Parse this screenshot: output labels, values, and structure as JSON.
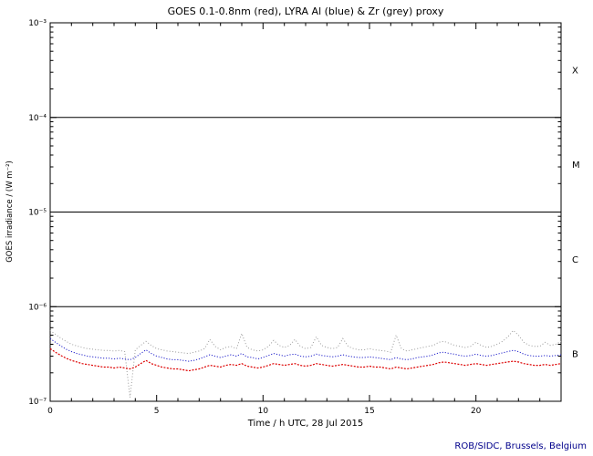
{
  "window": {
    "kind": "solar x-ray flux monitor plot"
  },
  "footer": {
    "credit": "ROB/SIDC, Brussels, Belgium"
  },
  "chart_data": {
    "type": "line",
    "title": "GOES 0.1-0.8nm (red), LYRA Al (blue) & Zr (grey) proxy",
    "xlabel": "Time / h UTC, 28 Jul 2015",
    "ylabel": "GOES irradiance / (W m⁻²)",
    "x_range": [
      0,
      24
    ],
    "y_scale": "log",
    "y_range": [
      1e-07,
      0.001
    ],
    "x_ticks_major": [
      0,
      5,
      10,
      15,
      20
    ],
    "x_tick_labels": [
      "0",
      "5",
      "10",
      "15",
      "20"
    ],
    "x_minor_step": 1,
    "y_ticks_major": [
      0.001,
      0.0001,
      1e-05,
      1e-06,
      1e-07
    ],
    "y_tick_labels": [
      "10⁻³",
      "10⁻⁴",
      "10⁻⁵",
      "10⁻⁶",
      "10⁻⁷"
    ],
    "hlines": [
      0.0001,
      1e-05,
      1e-06
    ],
    "class_labels": [
      {
        "label": "X",
        "value": 0.000316
      },
      {
        "label": "M",
        "value": 3.16e-05
      },
      {
        "label": "C",
        "value": 3.16e-06
      },
      {
        "label": "B",
        "value": 3.16e-07
      }
    ],
    "grid": false,
    "legend_position": "in-title",
    "x_start": 0,
    "x_step": 0.25,
    "unit_scale": 1e-07,
    "series": [
      {
        "name": "GOES 0.1-0.8nm",
        "color": "#dd0000",
        "values": [
          3.6,
          3.3,
          3.05,
          2.85,
          2.7,
          2.6,
          2.5,
          2.45,
          2.4,
          2.35,
          2.3,
          2.3,
          2.25,
          2.3,
          2.25,
          2.2,
          2.3,
          2.5,
          2.7,
          2.5,
          2.4,
          2.3,
          2.25,
          2.2,
          2.2,
          2.15,
          2.1,
          2.15,
          2.2,
          2.3,
          2.4,
          2.35,
          2.3,
          2.4,
          2.45,
          2.4,
          2.5,
          2.35,
          2.3,
          2.25,
          2.3,
          2.4,
          2.5,
          2.45,
          2.4,
          2.45,
          2.5,
          2.4,
          2.35,
          2.4,
          2.5,
          2.45,
          2.4,
          2.35,
          2.4,
          2.45,
          2.4,
          2.35,
          2.3,
          2.3,
          2.35,
          2.3,
          2.3,
          2.25,
          2.2,
          2.3,
          2.25,
          2.2,
          2.25,
          2.3,
          2.35,
          2.4,
          2.45,
          2.55,
          2.6,
          2.55,
          2.5,
          2.45,
          2.4,
          2.45,
          2.5,
          2.45,
          2.4,
          2.45,
          2.5,
          2.55,
          2.6,
          2.65,
          2.6,
          2.5,
          2.45,
          2.4,
          2.4,
          2.45,
          2.4,
          2.45,
          2.5
        ]
      },
      {
        "name": "LYRA Al proxy",
        "color": "#2222cc",
        "values": [
          4.6,
          4.2,
          3.85,
          3.55,
          3.35,
          3.2,
          3.1,
          3.0,
          2.95,
          2.9,
          2.85,
          2.85,
          2.8,
          2.85,
          2.8,
          2.75,
          2.9,
          3.2,
          3.5,
          3.2,
          3.0,
          2.9,
          2.8,
          2.75,
          2.75,
          2.7,
          2.65,
          2.7,
          2.8,
          2.95,
          3.1,
          3.0,
          2.9,
          3.0,
          3.1,
          3.0,
          3.2,
          2.95,
          2.9,
          2.8,
          2.9,
          3.05,
          3.2,
          3.1,
          3.0,
          3.1,
          3.15,
          3.0,
          2.95,
          3.0,
          3.15,
          3.05,
          3.0,
          2.95,
          3.0,
          3.1,
          3.0,
          2.95,
          2.9,
          2.9,
          2.95,
          2.9,
          2.85,
          2.8,
          2.75,
          2.9,
          2.8,
          2.75,
          2.8,
          2.9,
          2.95,
          3.0,
          3.1,
          3.25,
          3.3,
          3.2,
          3.15,
          3.05,
          3.0,
          3.05,
          3.15,
          3.05,
          3.0,
          3.05,
          3.15,
          3.25,
          3.35,
          3.45,
          3.35,
          3.15,
          3.05,
          3.0,
          3.0,
          3.05,
          3.0,
          3.05,
          3.1
        ]
      },
      {
        "name": "LYRA Zr proxy",
        "color": "#999999",
        "values": [
          5.6,
          5.1,
          4.65,
          4.3,
          4.0,
          3.85,
          3.7,
          3.6,
          3.55,
          3.5,
          3.45,
          3.45,
          3.4,
          3.45,
          3.35,
          1.1,
          3.5,
          3.9,
          4.3,
          3.9,
          3.6,
          3.5,
          3.4,
          3.35,
          3.3,
          3.25,
          3.2,
          3.3,
          3.4,
          3.6,
          4.5,
          3.8,
          3.5,
          3.7,
          3.8,
          3.6,
          5.2,
          3.7,
          3.5,
          3.4,
          3.5,
          3.8,
          4.4,
          3.9,
          3.7,
          3.9,
          4.5,
          3.8,
          3.6,
          3.7,
          4.8,
          3.9,
          3.7,
          3.6,
          3.7,
          4.6,
          3.8,
          3.6,
          3.5,
          3.5,
          3.6,
          3.5,
          3.45,
          3.4,
          3.3,
          5.0,
          3.6,
          3.4,
          3.5,
          3.6,
          3.7,
          3.8,
          3.9,
          4.2,
          4.3,
          4.1,
          3.9,
          3.8,
          3.7,
          3.8,
          4.2,
          3.9,
          3.7,
          3.8,
          4.0,
          4.3,
          4.8,
          5.6,
          5.0,
          4.2,
          3.9,
          3.8,
          3.8,
          4.2,
          3.9,
          4.0,
          4.3
        ]
      }
    ]
  }
}
